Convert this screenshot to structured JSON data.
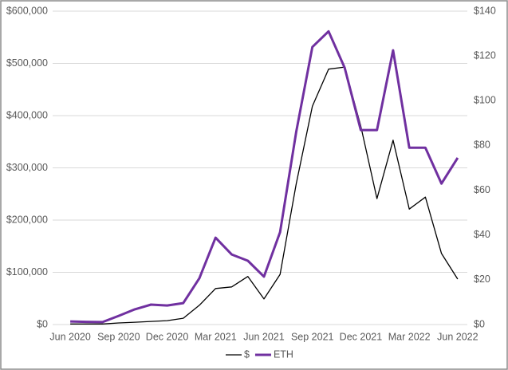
{
  "chart_data": {
    "type": "line",
    "categories": [
      "Jun 2020",
      null,
      null,
      "Sep 2020",
      null,
      null,
      "Dec 2020",
      null,
      null,
      "Mar 2021",
      null,
      null,
      "Jun 2021",
      null,
      null,
      "Sep 2021",
      null,
      null,
      "Dec 2021",
      null,
      null,
      "Mar 2022",
      null,
      null,
      "Jun 2022"
    ],
    "series": [
      {
        "name": "$",
        "color": "#000000",
        "values": [
          1000,
          1000,
          1000,
          3000,
          4500,
          6000,
          7500,
          12000,
          37000,
          69000,
          72000,
          92000,
          49000,
          96000,
          270000,
          418000,
          489000,
          493000,
          380000,
          241000,
          353000,
          221000,
          244000,
          136000,
          87000
        ]
      },
      {
        "name": "ETH",
        "color": "#7030a0",
        "axis": "y2",
        "values": [
          1.4,
          1.2,
          1.1,
          3.9,
          6.8,
          8.9,
          8.5,
          9.6,
          20.7,
          38.8,
          31.3,
          28.5,
          21.4,
          41.3,
          86.2,
          124,
          131,
          114.7,
          86.9,
          86.9,
          122.5,
          79,
          79,
          63,
          74.5
        ]
      }
    ],
    "ylim": [
      0,
      600000
    ],
    "yticks": [
      {
        "value": 0,
        "label": "$0"
      },
      {
        "value": 100000,
        "label": "$100,000"
      },
      {
        "value": 200000,
        "label": "$200,000"
      },
      {
        "value": 300000,
        "label": "$300,000"
      },
      {
        "value": 400000,
        "label": "$400,000"
      },
      {
        "value": 500000,
        "label": "$500,000"
      },
      {
        "value": 600000,
        "label": "$600,000"
      }
    ],
    "y2lim": [
      0,
      140
    ],
    "y2ticks": [
      {
        "value": 0,
        "label": "$0"
      },
      {
        "value": 20,
        "label": "$20"
      },
      {
        "value": 40,
        "label": "$40"
      },
      {
        "value": 60,
        "label": "$60"
      },
      {
        "value": 80,
        "label": "$80"
      },
      {
        "value": 100,
        "label": "$100"
      },
      {
        "value": 120,
        "label": "$120"
      },
      {
        "value": 140,
        "label": "$140"
      }
    ],
    "grid": true,
    "legend": "bottom"
  }
}
